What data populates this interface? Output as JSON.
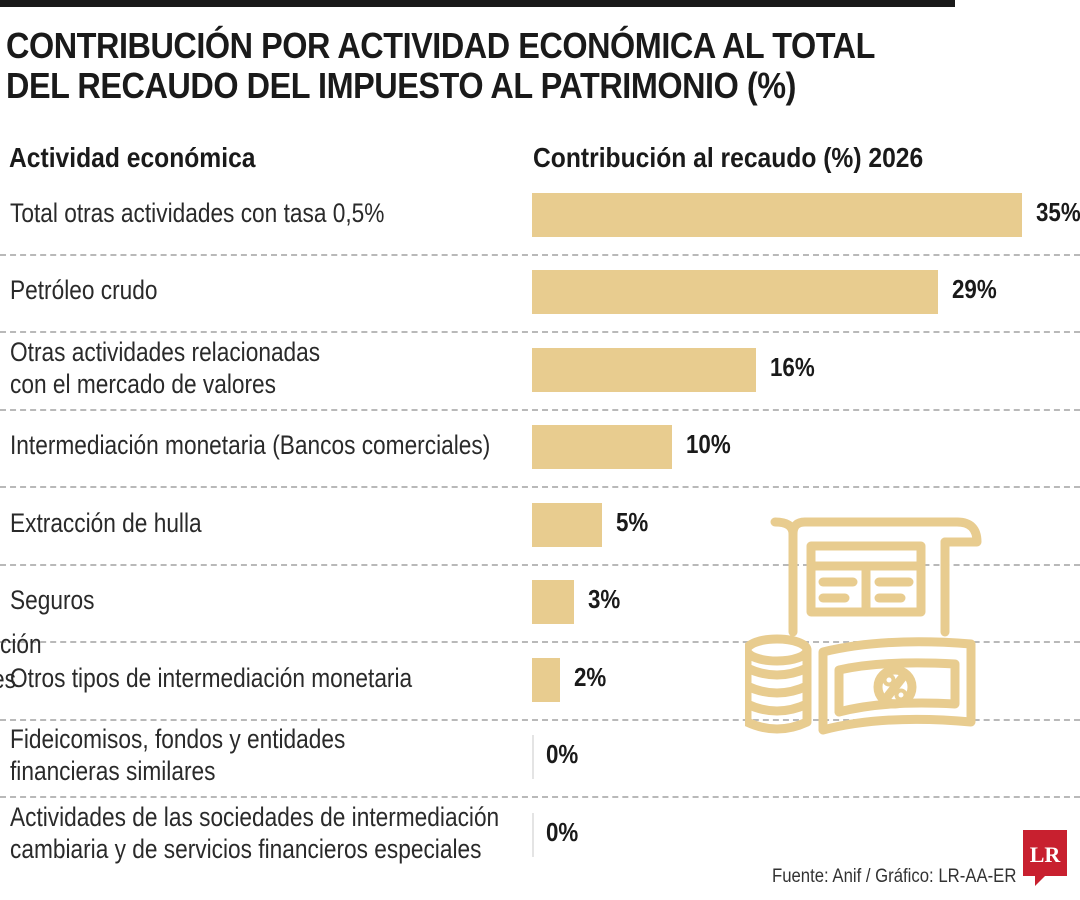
{
  "header": {
    "title_line1": "CONTRIBUCIÓN POR ACTIVIDAD ECONÓMICA AL TOTAL",
    "title_line2": "DEL RECAUDO DEL IMPUESTO AL PATRIMONIO (%)"
  },
  "chart_data": {
    "type": "bar",
    "orientation": "horizontal",
    "title": "CONTRIBUCIÓN POR ACTIVIDAD ECONÓMICA AL TOTAL DEL RECAUDO DEL IMPUESTO AL PATRIMONIO (%)",
    "category_header": "Actividad económica",
    "value_header": "Contribución al recaudo (%) 2026",
    "unit": "%",
    "xlim": [
      0,
      35
    ],
    "grid": false,
    "bar_color": "#e8cc8f",
    "categories": [
      [
        "Total otras actividades con tasa 0,5%"
      ],
      [
        "Petróleo crudo"
      ],
      [
        "Otras actividades relacionadas",
        "con el mercado de valores"
      ],
      [
        "Intermediación monetaria (Bancos comerciales)"
      ],
      [
        "Extracción de hulla"
      ],
      [
        "Seguros"
      ],
      [
        "Otros tipos de intermediación monetaria"
      ],
      [
        "Fideicomisos, fondos y entidades",
        "financieras similares"
      ],
      [
        "Actividades de las sociedades de intermediación",
        "cambiaria y de servicios financieros especiales"
      ]
    ],
    "values": [
      35,
      29,
      16,
      10,
      5,
      3,
      2,
      0,
      0
    ],
    "value_labels": [
      "35%",
      "29%",
      "16%",
      "10%",
      "5%",
      "3%",
      "2%",
      "0%",
      "0%"
    ]
  },
  "artifacts": {
    "stray_line1": "ción",
    "stray_line2": "es"
  },
  "footer": {
    "source": "Fuente: Anif / Gráfico: LR-AA-ER",
    "logo_text": "LR"
  },
  "illustration": {
    "icon": "receipt-and-money-icon",
    "color": "#e8cc8f"
  },
  "colors": {
    "accent": "#e8cc8f",
    "logo": "#c8202f",
    "text": "#1a1a1a"
  }
}
